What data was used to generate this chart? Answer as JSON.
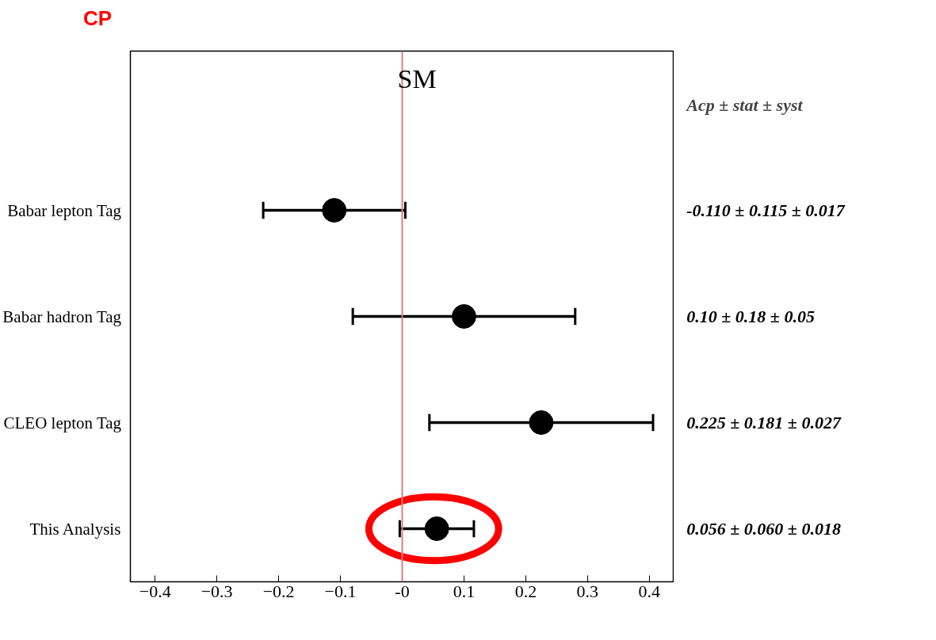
{
  "chart_data": {
    "type": "scatter",
    "orientation": "horizontal",
    "marker": "circle",
    "grid": false,
    "categories": [
      null,
      "Babar lepton Tag",
      "Babar hadron Tag",
      "CLEO lepton Tag",
      "This Analysis"
    ],
    "values": [
      null,
      -0.11,
      0.1,
      0.225,
      0.056
    ],
    "errors": [
      null,
      0.115,
      0.18,
      0.181,
      0.06
    ],
    "color": "#000000",
    "xlim": [
      -0.44,
      0.44
    ],
    "xticks": [
      -0.4,
      -0.3,
      -0.2,
      -0.1,
      {
        "value": 0,
        "label": "-0"
      },
      0.1,
      0.2,
      0.3,
      0.4
    ],
    "ref_lines": [
      {
        "axis": "x",
        "value": 0,
        "label": "SM",
        "color": "#d98080"
      }
    ],
    "annotations": [
      "CP",
      "Acp  ± stat ± syst",
      "-0.110 ± 0.115 ± 0.017",
      "0.10 ± 0.18 ± 0.05",
      "0.225 ± 0.181 ± 0.027",
      "0.056 ± 0.060 ± 0.018"
    ]
  }
}
